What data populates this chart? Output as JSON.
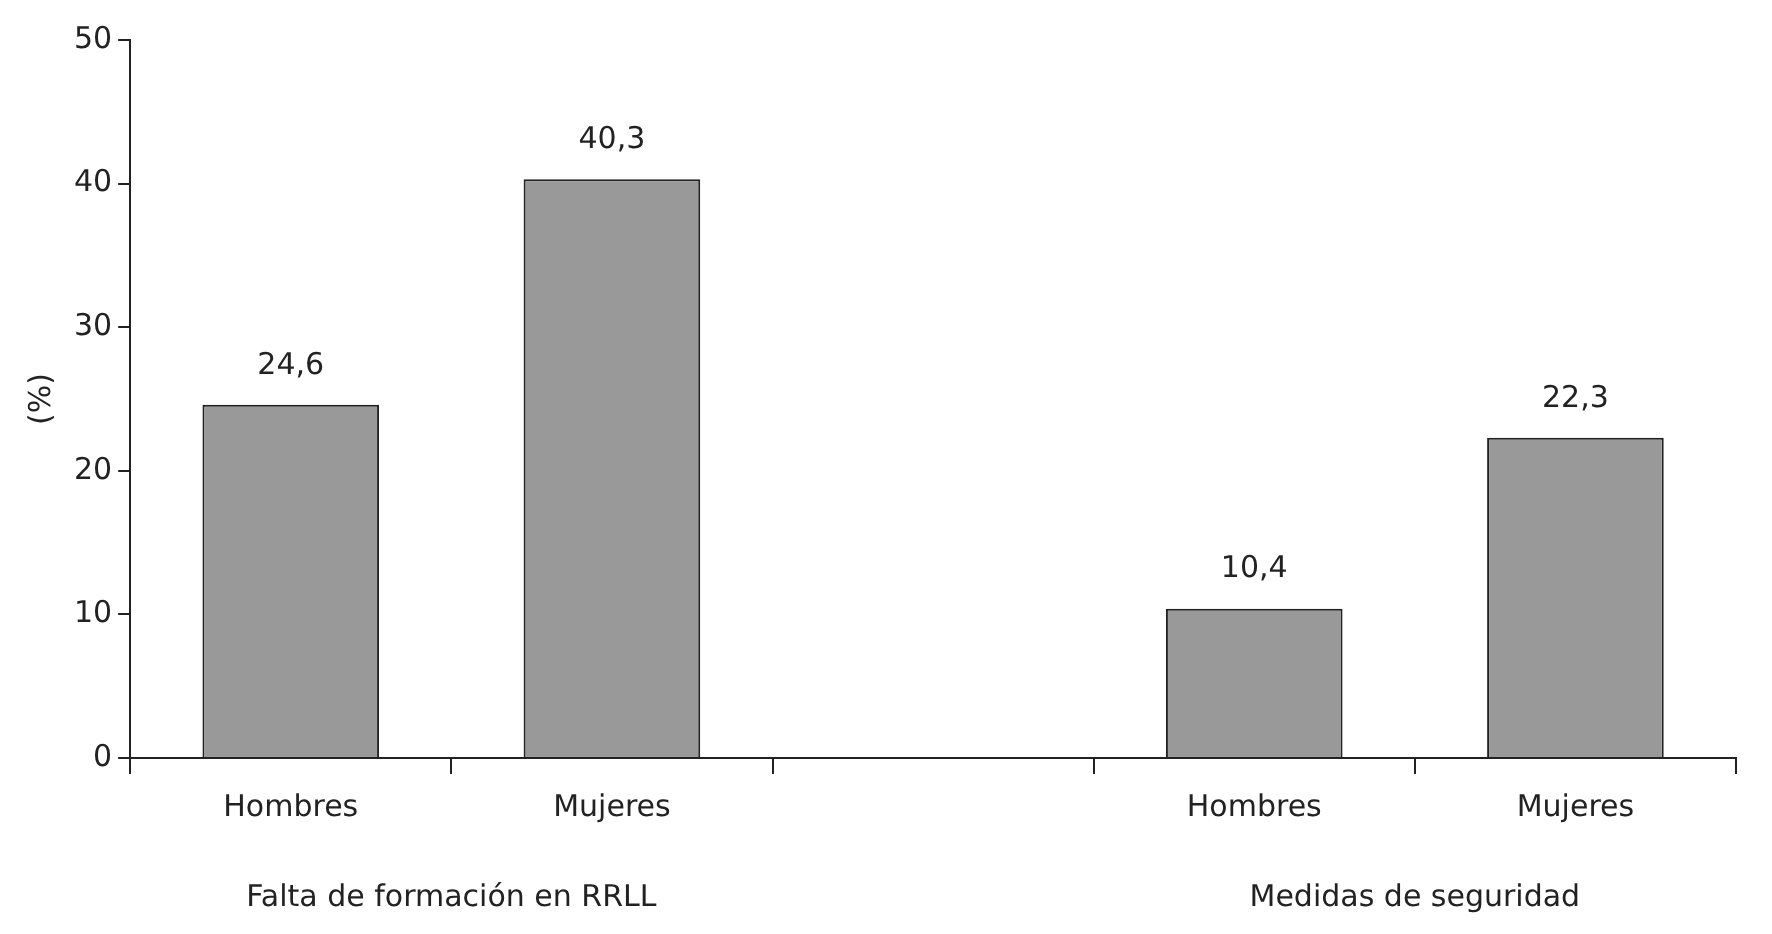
{
  "chart_data": {
    "type": "bar",
    "ylabel": "(%)",
    "categories": [
      "Hombres",
      "Mujeres",
      null,
      "Hombres",
      "Mujeres"
    ],
    "values": [
      24.6,
      40.3,
      null,
      10.4,
      22.3
    ],
    "value_labels": [
      "24,6",
      "40,3",
      null,
      "10,4",
      "22,3"
    ],
    "color": "#999999",
    "ylim": [
      0,
      50
    ],
    "yticks": [
      0,
      10,
      20,
      30,
      40,
      50
    ],
    "annotations": [
      "Falta de formación en RRLL",
      "Medidas de seguridad"
    ]
  }
}
